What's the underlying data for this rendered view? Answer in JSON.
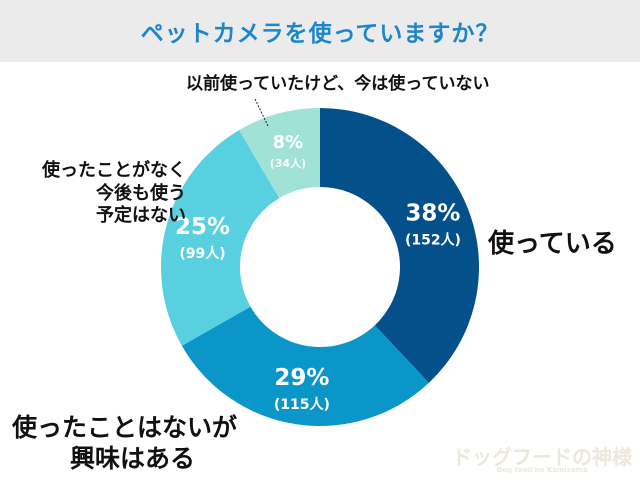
{
  "chart_data": {
    "type": "pie",
    "donut": true,
    "title": "ペットカメラを使っていますか？",
    "slices": [
      {
        "label": "使っている",
        "percent": 38,
        "count_label": "(152人)",
        "count": 152,
        "color": "#04508a"
      },
      {
        "label": "使ったことはないが興味はある",
        "percent": 29,
        "count_label": "(115人)",
        "count": 115,
        "color": "#0a96c8"
      },
      {
        "label": "使ったことがなく今後も使う予定はない",
        "percent": 25,
        "count_label": "(99人)",
        "count": 99,
        "color": "#58d0e0"
      },
      {
        "label": "以前使っていたけど、今は使っていない",
        "percent": 8,
        "count_label": "(34人)",
        "count": 34,
        "color": "#a0e2d6"
      }
    ]
  },
  "labels": {
    "using": "使っている",
    "interested": [
      "使ったことはないが",
      "興味はある"
    ],
    "never": [
      "使ったことがなく",
      "今後も使う",
      "予定はない"
    ],
    "former": "以前使っていたけど、今は使っていない"
  },
  "logo": {
    "main": "ドッグフードの神様",
    "sub": "Dog food no Kamisama"
  }
}
